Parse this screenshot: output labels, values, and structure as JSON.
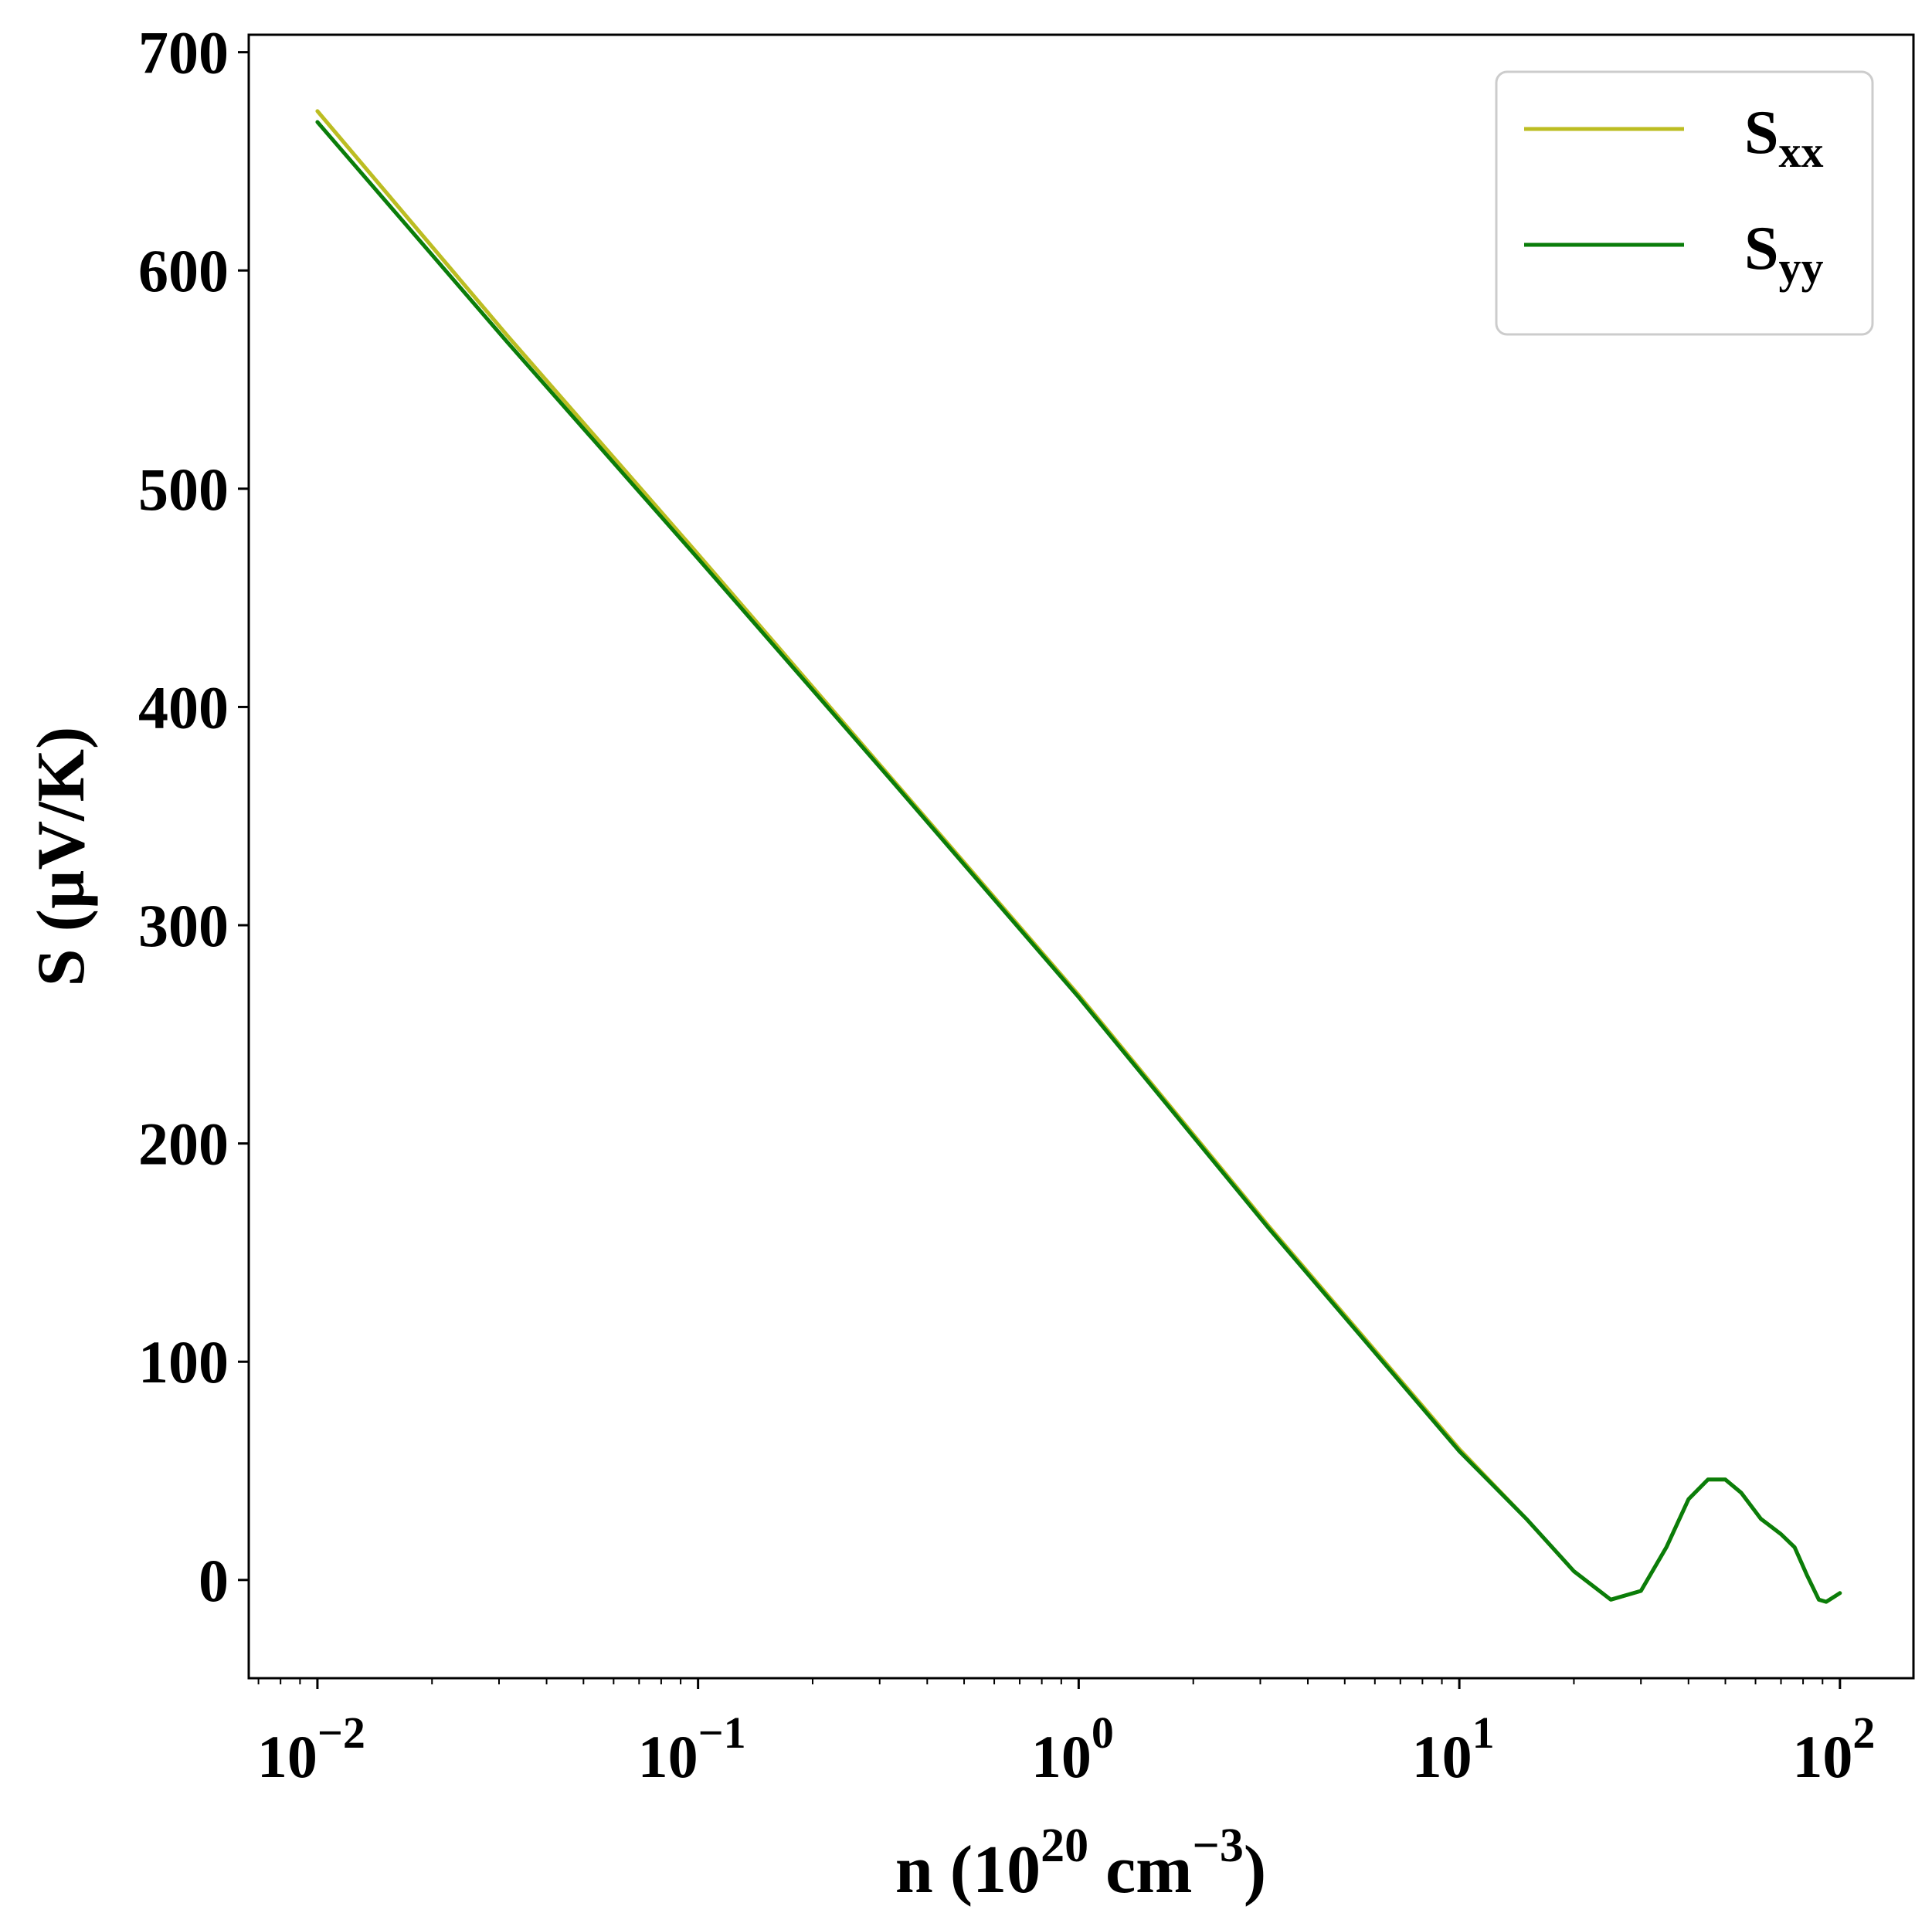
{
  "chart_data": {
    "type": "line",
    "title": "",
    "xlabel": {
      "base": "n (10",
      "exp1": "20",
      "mid": " cm",
      "exp2": "−3",
      "end": ")"
    },
    "ylabel": "S (µV/K)",
    "xscale": "log",
    "xlim": [
      0.0066,
      156
    ],
    "ylim": [
      -45,
      708
    ],
    "x_ticks": [
      {
        "value": 0.01,
        "base": "10",
        "exp": "−2"
      },
      {
        "value": 0.1,
        "base": "10",
        "exp": "−1"
      },
      {
        "value": 1,
        "base": "10",
        "exp": "0"
      },
      {
        "value": 10,
        "base": "10",
        "exp": "1"
      },
      {
        "value": 100,
        "base": "10",
        "exp": "2"
      }
    ],
    "y_ticks": [
      0,
      100,
      200,
      300,
      400,
      500,
      600,
      700
    ],
    "grid": false,
    "legend": {
      "position": "top-right",
      "entries": [
        {
          "base": "S",
          "sub": "xx",
          "color": "#bcbd22"
        },
        {
          "base": "S",
          "sub": "yy",
          "color": "#0a7d0a"
        }
      ]
    },
    "series": [
      {
        "name": "S_xx",
        "color": "#bcbd22",
        "points": [
          [
            0.01,
            673
          ],
          [
            0.0316,
            570
          ],
          [
            0.1,
            470
          ],
          [
            0.316,
            369
          ],
          [
            1,
            268
          ],
          [
            3.16,
            162
          ],
          [
            10,
            60
          ],
          [
            15,
            28
          ],
          [
            20,
            4
          ],
          [
            25,
            -9
          ],
          [
            30,
            -5
          ],
          [
            35,
            15
          ],
          [
            40,
            37
          ],
          [
            45,
            46
          ],
          [
            50,
            46
          ],
          [
            55,
            40
          ],
          [
            62,
            28
          ],
          [
            70,
            21
          ],
          [
            76,
            15
          ],
          [
            82,
            2
          ],
          [
            88,
            -9
          ],
          [
            92,
            -10
          ],
          [
            96,
            -8
          ],
          [
            100,
            -6
          ]
        ]
      },
      {
        "name": "S_yy",
        "color": "#0a7d0a",
        "points": [
          [
            0.01,
            668
          ],
          [
            0.0316,
            567
          ],
          [
            0.1,
            468
          ],
          [
            0.316,
            368
          ],
          [
            1,
            267
          ],
          [
            3.16,
            161
          ],
          [
            10,
            59
          ],
          [
            15,
            28
          ],
          [
            20,
            4
          ],
          [
            25,
            -9
          ],
          [
            30,
            -5
          ],
          [
            35,
            15
          ],
          [
            40,
            37
          ],
          [
            45,
            46
          ],
          [
            50,
            46
          ],
          [
            55,
            40
          ],
          [
            62,
            28
          ],
          [
            70,
            21
          ],
          [
            76,
            15
          ],
          [
            82,
            2
          ],
          [
            88,
            -9
          ],
          [
            92,
            -10
          ],
          [
            96,
            -8
          ],
          [
            100,
            -6
          ]
        ]
      }
    ]
  }
}
